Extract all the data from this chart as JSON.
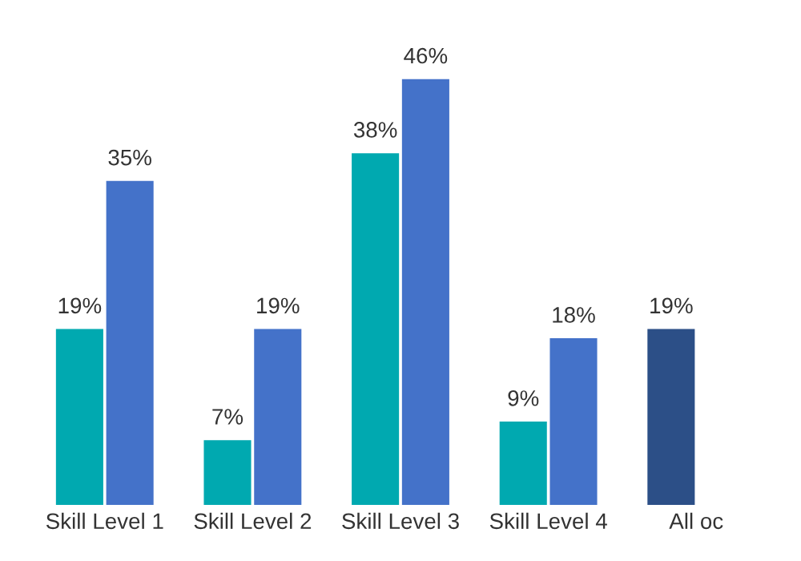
{
  "chart_data": {
    "type": "bar",
    "categories": [
      "Skill Level 1",
      "Skill Level 2",
      "Skill Level 3",
      "Skill Level 4",
      "All oc"
    ],
    "series": [
      {
        "color": "#00a9b0",
        "colors": [
          "#00a9b0",
          "#00a9b0",
          "#00a9b0",
          "#00a9b0",
          "#2c4f87"
        ],
        "values": [
          19,
          7,
          38,
          9,
          19
        ],
        "value_labels": [
          "19%",
          "7%",
          "38%",
          "9%",
          "19%"
        ]
      },
      {
        "color": "#4472c9",
        "values": [
          35,
          19,
          46,
          18,
          null
        ],
        "value_labels": [
          "35%",
          "19%",
          "46%",
          "18%",
          null
        ]
      }
    ],
    "grid": false,
    "legend": false
  }
}
